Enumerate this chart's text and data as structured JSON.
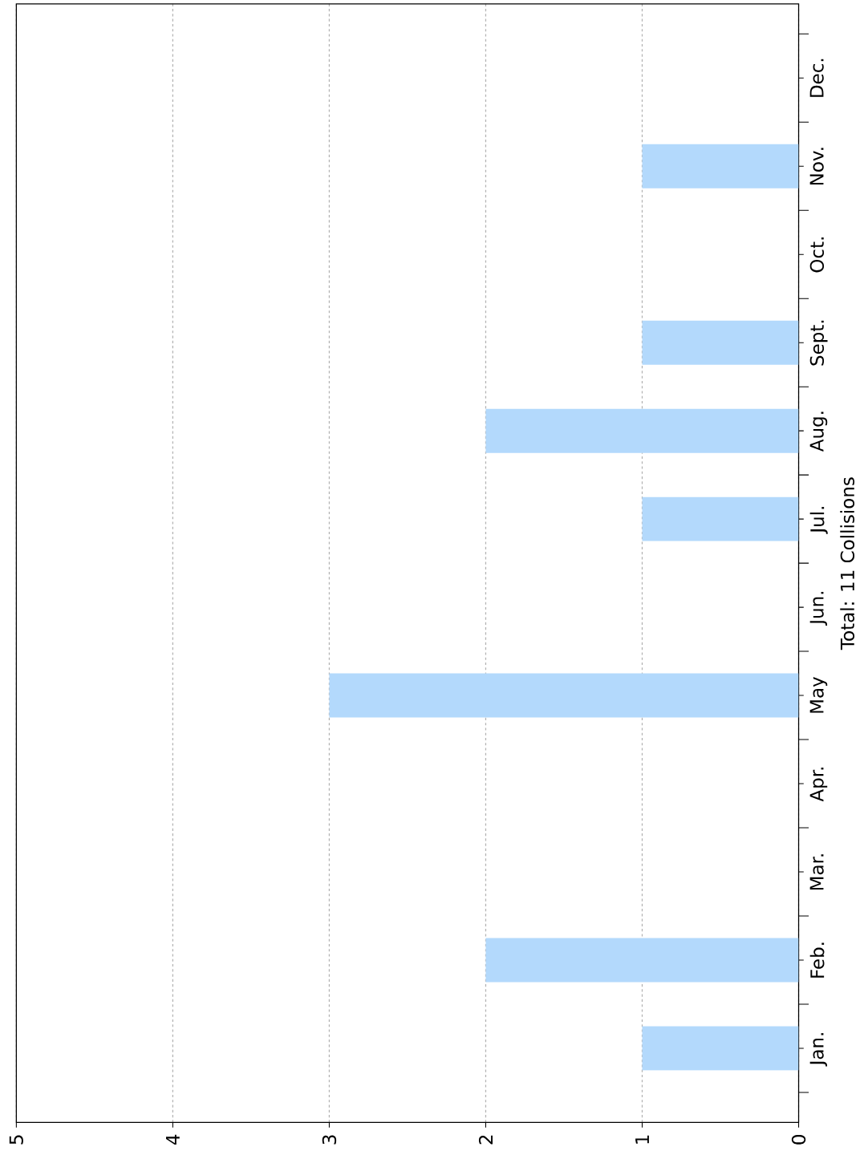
{
  "chart_data": {
    "type": "bar",
    "orientation": "horizontal",
    "ylabel": "Total: 11 Collisions",
    "categories": [
      "Dec.",
      "Nov.",
      "Oct.",
      "Sept.",
      "Aug.",
      "Jul.",
      "Jun.",
      "May",
      "Apr.",
      "Mar.",
      "Feb.",
      "Jan."
    ],
    "values": [
      0,
      1,
      0,
      1,
      2,
      1,
      0,
      3,
      0,
      0,
      2,
      1
    ],
    "color": "#b3d9fc",
    "xlim": [
      5,
      0
    ],
    "xticks": [
      0,
      1,
      2,
      3,
      4,
      5
    ],
    "grid": "x"
  }
}
